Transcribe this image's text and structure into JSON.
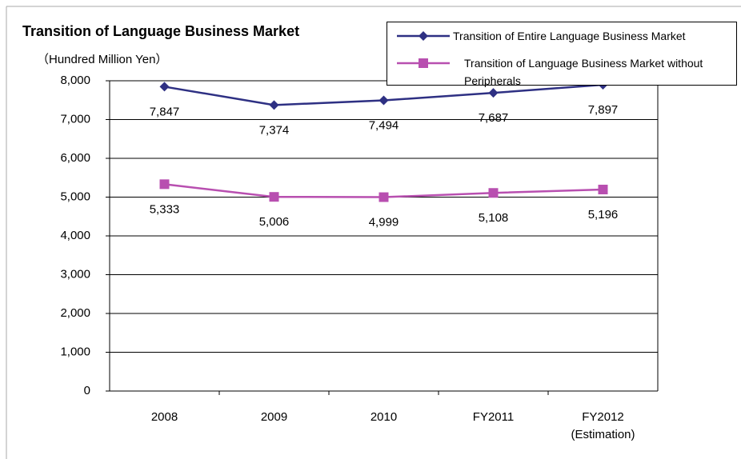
{
  "chart_data": {
    "type": "line",
    "title": "Transition of Language Business Market",
    "y_label": "（Hundred Million Yen）",
    "categories": [
      "2008",
      "2009",
      "2010",
      "FY2011",
      "FY2012 (Estimation)"
    ],
    "series": [
      {
        "name": "Transition of Entire Language Business Market",
        "color": "#2e3083",
        "marker": "diamond",
        "values": [
          7847,
          7374,
          7494,
          7687,
          7897
        ],
        "value_labels": [
          "7,847",
          "7,374",
          "7,494",
          "7,687",
          "7,897"
        ]
      },
      {
        "name": "Transition of Language Business Market without Peripherals",
        "color": "#b84fb0",
        "marker": "square",
        "values": [
          5333,
          5006,
          4999,
          5108,
          5196
        ],
        "value_labels": [
          "5,333",
          "5,006",
          "4,999",
          "5,108",
          "5,196"
        ]
      }
    ],
    "ylim": [
      0,
      8000
    ],
    "yticks": [
      0,
      {
        "value": 1000,
        "label": "1,000"
      },
      {
        "value": 2000,
        "label": "2,000"
      },
      {
        "value": 3000,
        "label": "3,000"
      },
      {
        "value": 4000,
        "label": "4,000"
      },
      {
        "value": 5000,
        "label": "5,000"
      },
      {
        "value": 6000,
        "label": "6,000"
      },
      {
        "value": 7000,
        "label": "7,000"
      },
      {
        "value": 8000,
        "label": "8,000"
      }
    ],
    "grid": true,
    "legend": "top-right"
  }
}
